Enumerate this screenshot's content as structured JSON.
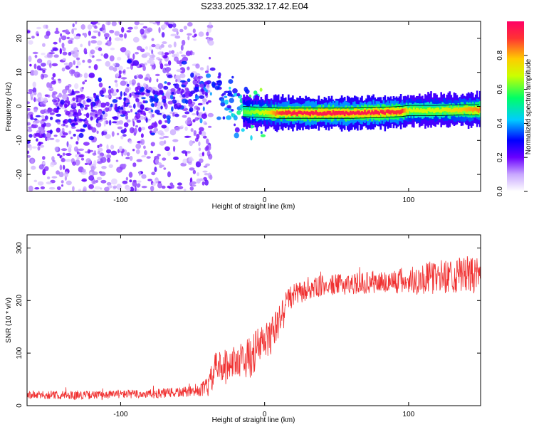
{
  "title": "S233.2025.332.17.42.E04",
  "colors": {
    "snr_line": "#f03030",
    "axis": "#000000",
    "scatter": "#8a2be2",
    "colormap": [
      "#ffffff",
      "#e8d8ff",
      "#9966ff",
      "#6a00ff",
      "#0000ff",
      "#00ccff",
      "#00ff66",
      "#ccff00",
      "#ffcc00",
      "#ff3333",
      "#ff0066"
    ]
  },
  "chart_data": [
    {
      "type": "heatmap",
      "title": "",
      "xlabel": "Height of straight line (km)",
      "ylabel": "Frequency (Hz)",
      "xlim": [
        -165,
        150
      ],
      "ylim": [
        -25,
        25
      ],
      "xticks": [
        -100,
        0,
        100
      ],
      "xtick_labels": [
        "-100",
        "0",
        "100"
      ],
      "yticks": [
        -20,
        -10,
        0,
        10,
        20
      ],
      "ytick_labels": [
        "-20",
        "-10",
        "0",
        "10",
        "20"
      ],
      "colorbar": {
        "label": "Normalized spectral amplitude",
        "range": [
          0,
          1
        ],
        "ticks": [
          0.0,
          0.2,
          0.4,
          0.6,
          0.8
        ],
        "tick_labels": [
          "0.0",
          "0.2",
          "0.4",
          "0.6",
          "0.8"
        ]
      },
      "noise_region": {
        "x": [
          -165,
          -45
        ],
        "freq": [
          -25,
          25
        ],
        "amplitude": 0.15
      },
      "spread_band": {
        "x": [
          -165,
          -40,
          -35,
          -30,
          -25,
          -20,
          -15,
          -10,
          -5,
          0
        ],
        "freq_center": [
          -5,
          4,
          6,
          3,
          2,
          0.5,
          0,
          -1,
          -1.5,
          -2
        ],
        "amplitude": [
          0.2,
          0.3,
          0.35,
          0.3,
          0.35,
          0.4,
          0.45,
          0.5,
          0.5,
          0.55
        ]
      },
      "ridge": {
        "x": [
          -15,
          0,
          10,
          20,
          40,
          60,
          80,
          95,
          100,
          120,
          140,
          150
        ],
        "freq": [
          -1.5,
          -1.8,
          -2,
          -2,
          -2,
          -2,
          -1.8,
          -1.5,
          -1.2,
          -1.2,
          -1,
          -1
        ],
        "amplitude": [
          0.6,
          0.7,
          0.9,
          0.95,
          0.95,
          0.95,
          0.95,
          0.9,
          0.7,
          0.7,
          0.8,
          0.85
        ]
      }
    },
    {
      "type": "line",
      "title": "",
      "xlabel": "Height of straight line (km)",
      "ylabel": "SNR (10 * v/v)",
      "xlim": [
        -165,
        150
      ],
      "ylim": [
        0,
        325
      ],
      "xticks": [
        -100,
        0,
        100
      ],
      "xtick_labels": [
        "-100",
        "0",
        "100"
      ],
      "yticks": [
        0,
        100,
        200,
        300
      ],
      "ytick_labels": [
        "0",
        "100",
        "200",
        "300"
      ],
      "series": [
        {
          "name": "SNR",
          "x": [
            -165,
            -140,
            -120,
            -100,
            -80,
            -60,
            -45,
            -38,
            -35,
            -30,
            -25,
            -20,
            -15,
            -10,
            -5,
            0,
            5,
            10,
            15,
            20,
            30,
            40,
            60,
            80,
            100,
            120,
            140,
            150
          ],
          "y": [
            20,
            20,
            20,
            22,
            22,
            25,
            28,
            40,
            70,
            75,
            80,
            85,
            90,
            90,
            110,
            120,
            135,
            160,
            200,
            210,
            220,
            228,
            232,
            235,
            238,
            245,
            250,
            245
          ],
          "noise": [
            8,
            8,
            8,
            8,
            9,
            10,
            10,
            25,
            30,
            30,
            30,
            30,
            35,
            40,
            40,
            40,
            35,
            30,
            25,
            22,
            20,
            20,
            20,
            22,
            28,
            32,
            35,
            35
          ]
        }
      ]
    }
  ]
}
